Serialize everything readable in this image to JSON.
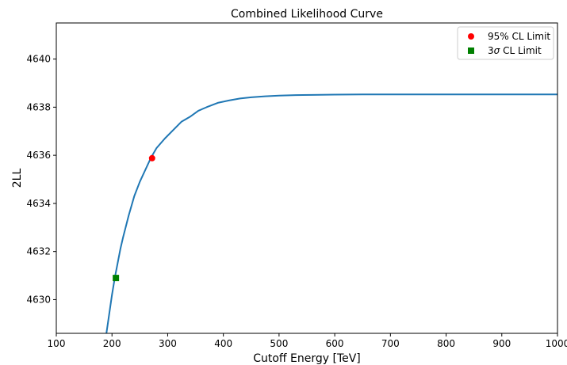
{
  "chart_data": {
    "type": "line",
    "title": "Combined Likelihood Curve",
    "xlabel": "Cutoff Energy [TeV]",
    "ylabel": "2LL",
    "xlim": [
      100,
      1000
    ],
    "ylim": [
      4628.6,
      4641.5
    ],
    "xticks": [
      100,
      200,
      300,
      400,
      500,
      600,
      700,
      800,
      900,
      1000
    ],
    "yticks": [
      4630,
      4632,
      4634,
      4636,
      4638,
      4640
    ],
    "grid": false,
    "legend_position": "top-right",
    "series": [
      {
        "type": "line",
        "color": "#1f77b4",
        "x": [
          190,
          195,
          200,
          205,
          210,
          215,
          220,
          230,
          240,
          250,
          260,
          270,
          280,
          295,
          310,
          325,
          340,
          355,
          370,
          390,
          410,
          430,
          450,
          475,
          500,
          530,
          560,
          600,
          650,
          700,
          800,
          900,
          1000
        ],
        "y": [
          4628.6,
          4629.4,
          4630.2,
          4630.9,
          4631.5,
          4632.1,
          4632.6,
          4633.5,
          4634.3,
          4634.9,
          4635.4,
          4635.9,
          4636.3,
          4636.7,
          4637.05,
          4637.4,
          4637.6,
          4637.85,
          4638.0,
          4638.18,
          4638.28,
          4638.36,
          4638.41,
          4638.45,
          4638.48,
          4638.5,
          4638.51,
          4638.52,
          4638.53,
          4638.53,
          4638.53,
          4638.53,
          4638.53
        ]
      },
      {
        "type": "scatter",
        "name": "95% CL Limit",
        "marker": "circle",
        "color": "#ff0000",
        "x": [
          272
        ],
        "y": [
          4635.88
        ]
      },
      {
        "type": "scatter",
        "name": "3σ CL Limit",
        "marker": "square",
        "color": "#008000",
        "x": [
          207
        ],
        "y": [
          4630.9
        ]
      }
    ],
    "legend": [
      {
        "label_prefix": "95% CL Limit",
        "label_sigma": "",
        "label_suffix": "",
        "marker": "circle",
        "color": "#ff0000"
      },
      {
        "label_prefix": "3",
        "label_sigma": "σ",
        "label_suffix": " CL Limit",
        "marker": "square",
        "color": "#008000"
      }
    ]
  }
}
